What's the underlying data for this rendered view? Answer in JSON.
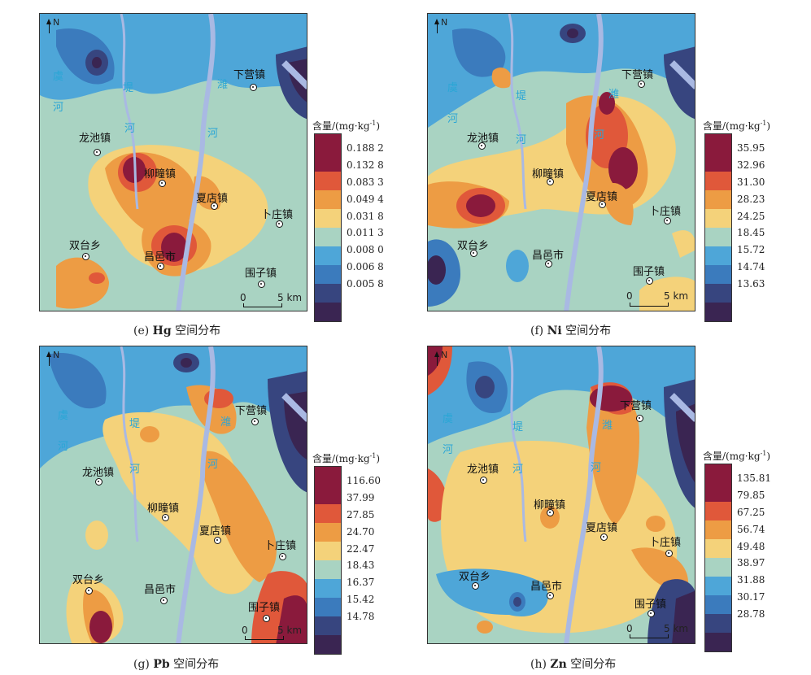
{
  "panels": [
    {
      "id": "e",
      "caption_prefix": "(e) ",
      "element": "Hg",
      "caption_suffix": " 空间分布",
      "legend_title": "含量/(mg·kg",
      "legend_sup": "-1",
      "legend_close": ")",
      "legend_values": [
        "0.188 2",
        "0.132 8",
        "0.083 3",
        "0.049 4",
        "0.031 8",
        "0.011 3",
        "0.008 0",
        "0.006 8",
        "0.005 8"
      ],
      "towns": [
        "下营镇",
        "龙池镇",
        "柳疃镇",
        "夏店镇",
        "卜庄镇",
        "双台乡",
        "昌邑市",
        "围子镇"
      ],
      "rivers": [
        "虞",
        "河",
        "堤",
        "河",
        "潍",
        "河"
      ],
      "north": "N",
      "scale_zero": "0",
      "scale_len": "5 km"
    },
    {
      "id": "f",
      "caption_prefix": "(f) ",
      "element": "Ni",
      "caption_suffix": " 空间分布",
      "legend_title": "含量/(mg·kg",
      "legend_sup": "-1",
      "legend_close": ")",
      "legend_values": [
        "35.95",
        "32.96",
        "31.30",
        "28.23",
        "24.25",
        "18.45",
        "15.72",
        "14.74",
        "13.63"
      ],
      "towns": [
        "下营镇",
        "龙池镇",
        "柳疃镇",
        "夏店镇",
        "卜庄镇",
        "双台乡",
        "昌邑市",
        "围子镇"
      ],
      "rivers": [
        "虞",
        "河",
        "堤",
        "河",
        "潍",
        "河"
      ],
      "north": "N",
      "scale_zero": "0",
      "scale_len": "5 km"
    },
    {
      "id": "g",
      "caption_prefix": "(g) ",
      "element": "Pb",
      "caption_suffix": " 空间分布",
      "legend_title": "含量/(mg·kg",
      "legend_sup": "-1",
      "legend_close": ")",
      "legend_values": [
        "116.60",
        "37.99",
        "27.85",
        "24.70",
        "22.47",
        "18.43",
        "16.37",
        "15.42",
        "14.78"
      ],
      "towns": [
        "下营镇",
        "龙池镇",
        "柳疃镇",
        "夏店镇",
        "卜庄镇",
        "双台乡",
        "昌邑市",
        "围子镇"
      ],
      "rivers": [
        "虞",
        "河",
        "堤",
        "河",
        "潍",
        "河"
      ],
      "north": "N",
      "scale_zero": "0",
      "scale_len": "5 km"
    },
    {
      "id": "h",
      "caption_prefix": "(h) ",
      "element": "Zn",
      "caption_suffix": " 空间分布",
      "legend_title": "含量/(mg·kg",
      "legend_sup": "-1",
      "legend_close": ")",
      "legend_values": [
        "135.81",
        "79.85",
        "67.25",
        "56.74",
        "49.48",
        "38.97",
        "31.88",
        "30.17",
        "28.78"
      ],
      "towns": [
        "下营镇",
        "龙池镇",
        "柳疃镇",
        "夏店镇",
        "卜庄镇",
        "双台乡",
        "昌邑市",
        "围子镇"
      ],
      "rivers": [
        "虞",
        "河",
        "堤",
        "河",
        "潍",
        "河"
      ],
      "north": "N",
      "scale_zero": "0",
      "scale_len": "5 km"
    }
  ],
  "colors": {
    "ramp": [
      "#3a2552",
      "#37457f",
      "#3b7bbd",
      "#4ea6d8",
      "#a9d3c2",
      "#f4d27a",
      "#ed9c44",
      "#e0583a",
      "#8a1a3c"
    ],
    "river": "#a9b9e3",
    "dot": "#111111"
  }
}
